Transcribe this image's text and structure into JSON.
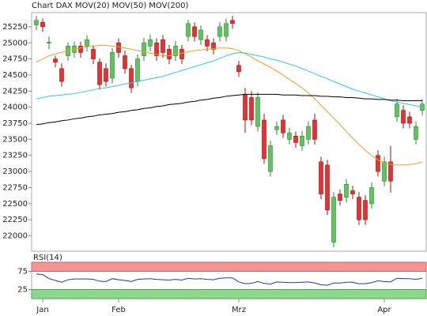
{
  "chart_data": [
    {
      "type": "candlestick",
      "title": "Chart DAX",
      "title_color": "#d04040",
      "open": [
        25280,
        25320,
        25000,
        24750,
        24600,
        24800,
        24850,
        24950,
        24950,
        24900,
        24700,
        24600,
        24450,
        25000,
        24800,
        24600,
        24400,
        24800,
        24950,
        25000,
        25050,
        24900,
        24800,
        24900,
        25100,
        25250,
        25050,
        25050,
        25000,
        25100,
        25100,
        25350,
        24650,
        24200,
        24150,
        23700,
        23800,
        23000,
        23650,
        23800,
        23500,
        23550,
        23400,
        23500,
        23800,
        23150,
        23100,
        21900,
        22650,
        22600,
        22700,
        22600,
        22550,
        22500,
        23250,
        22850,
        23150,
        23850,
        23950,
        23850,
        23500,
        23950
      ],
      "high": [
        25420,
        25380,
        25100,
        24800,
        24680,
        25010,
        25020,
        25020,
        25120,
        24960,
        24760,
        24680,
        24920,
        25070,
        24880,
        24660,
        24820,
        25080,
        25130,
        25070,
        25120,
        24970,
        25030,
        24970,
        25360,
        25320,
        25270,
        25120,
        25070,
        25320,
        25380,
        25420,
        24720,
        24300,
        24250,
        24230,
        23900,
        23480,
        23780,
        23880,
        23680,
        23620,
        23630,
        23780,
        23900,
        23230,
        23180,
        22680,
        22720,
        22880,
        22780,
        22680,
        22630,
        22830,
        23330,
        23230,
        23400,
        24130,
        24030,
        23930,
        23780,
        24130
      ],
      "low": [
        25200,
        25170,
        24900,
        24620,
        24320,
        24720,
        24770,
        24770,
        24870,
        24670,
        24270,
        24320,
        24370,
        24770,
        24520,
        24220,
        24320,
        24720,
        24870,
        24720,
        24770,
        24670,
        24720,
        24670,
        25020,
        25020,
        24970,
        24870,
        24820,
        25020,
        25020,
        25220,
        24470,
        23600,
        23720,
        23620,
        23120,
        22920,
        23570,
        23520,
        23420,
        23370,
        23320,
        23420,
        23420,
        22570,
        22320,
        21820,
        22470,
        22520,
        22570,
        22170,
        22170,
        22420,
        22920,
        22770,
        22670,
        23770,
        23670,
        23670,
        23420,
        23870
      ],
      "close": [
        25350,
        25250,
        25010,
        24700,
        24400,
        24950,
        24950,
        24850,
        25050,
        24750,
        24350,
        24400,
        24850,
        24850,
        24600,
        24300,
        24750,
        25000,
        25050,
        24800,
        24850,
        24750,
        24950,
        24750,
        25300,
        25100,
        25200,
        24950,
        24900,
        25250,
        25300,
        25300,
        24550,
        23800,
        23800,
        24150,
        23200,
        23400,
        23700,
        23600,
        23600,
        23450,
        23550,
        23700,
        23500,
        22650,
        22400,
        22600,
        22550,
        22800,
        22650,
        22250,
        22250,
        22750,
        23000,
        23150,
        22850,
        24050,
        23750,
        23750,
        23700,
        24050
      ],
      "up_color": "#5fc35f",
      "down_color": "#e83030",
      "series": [
        {
          "name": "MOV(20)",
          "color": "#f0a020",
          "values": [
            24700,
            24750,
            24800,
            24830,
            24850,
            24880,
            24900,
            24920,
            24940,
            24950,
            24960,
            24960,
            24950,
            24940,
            24920,
            24900,
            24880,
            24860,
            24840,
            24820,
            24800,
            24800,
            24820,
            24840,
            24860,
            24880,
            24890,
            24900,
            24910,
            24920,
            24920,
            24910,
            24880,
            24830,
            24780,
            24720,
            24670,
            24620,
            24560,
            24500,
            24430,
            24370,
            24300,
            24220,
            24130,
            24030,
            23930,
            23830,
            23730,
            23620,
            23520,
            23420,
            23330,
            23250,
            23180,
            23130,
            23110,
            23100,
            23100,
            23110,
            23120,
            23150
          ]
        },
        {
          "name": "MOV(50)",
          "color": "#30c8e0",
          "values": [
            24130,
            24150,
            24170,
            24180,
            24190,
            24200,
            24210,
            24230,
            24250,
            24270,
            24290,
            24300,
            24320,
            24340,
            24360,
            24380,
            24400,
            24420,
            24440,
            24460,
            24480,
            24510,
            24540,
            24570,
            24600,
            24630,
            24660,
            24690,
            24720,
            24760,
            24800,
            24830,
            24850,
            24840,
            24820,
            24800,
            24780,
            24750,
            24730,
            24700,
            24670,
            24640,
            24600,
            24560,
            24520,
            24480,
            24440,
            24400,
            24360,
            24320,
            24280,
            24250,
            24220,
            24190,
            24160,
            24130,
            24100,
            24080,
            24060,
            24040,
            24020,
            24000
          ]
        },
        {
          "name": "MOV(200)",
          "color": "#000000",
          "values": [
            23730,
            23740,
            23760,
            23770,
            23790,
            23800,
            23820,
            23830,
            23850,
            23860,
            23880,
            23890,
            23900,
            23920,
            23930,
            23950,
            23960,
            23980,
            23990,
            24010,
            24020,
            24040,
            24050,
            24060,
            24080,
            24090,
            24110,
            24120,
            24140,
            24150,
            24170,
            24180,
            24190,
            24200,
            24200,
            24200,
            24200,
            24200,
            24200,
            24190,
            24190,
            24190,
            24180,
            24180,
            24180,
            24170,
            24170,
            24160,
            24160,
            24150,
            24150,
            24140,
            24130,
            24130,
            24120,
            24120,
            24110,
            24110,
            24100,
            24100,
            24100,
            24100
          ]
        }
      ],
      "ylim": [
        21760,
        25470
      ],
      "yticks": [
        22000,
        22250,
        22500,
        22750,
        23000,
        23250,
        23500,
        23750,
        24000,
        24250,
        24500,
        24750,
        25000,
        25250
      ]
    },
    {
      "type": "line",
      "title": "RSI(14)",
      "categories": [
        null,
        "Jan",
        null,
        null,
        null,
        null,
        null,
        null,
        null,
        null,
        null,
        null,
        null,
        "Feb",
        null,
        null,
        null,
        null,
        null,
        null,
        null,
        null,
        null,
        null,
        null,
        null,
        null,
        null,
        null,
        null,
        null,
        null,
        "Mrz",
        null,
        null,
        null,
        null,
        null,
        null,
        null,
        null,
        null,
        null,
        null,
        null,
        null,
        null,
        null,
        null,
        null,
        null,
        null,
        null,
        null,
        null,
        "Apr",
        null,
        null,
        null,
        null,
        null,
        null
      ],
      "values": [
        68,
        66,
        55,
        50,
        45,
        52,
        54,
        54,
        54,
        53,
        48,
        47,
        55,
        52,
        50,
        47,
        53,
        54,
        55,
        53,
        52,
        51,
        53,
        51,
        56,
        54,
        55,
        53,
        52,
        56,
        57,
        57,
        46,
        41,
        42,
        47,
        42,
        40,
        46,
        45,
        44,
        44,
        45,
        46,
        43,
        38,
        37,
        43,
        43,
        45,
        45,
        41,
        41,
        44,
        49,
        47,
        46,
        56,
        55,
        55,
        53,
        56
      ],
      "color": "#2233cc",
      "ylim": [
        0,
        100
      ],
      "yticks": [
        25,
        75
      ]
    }
  ]
}
